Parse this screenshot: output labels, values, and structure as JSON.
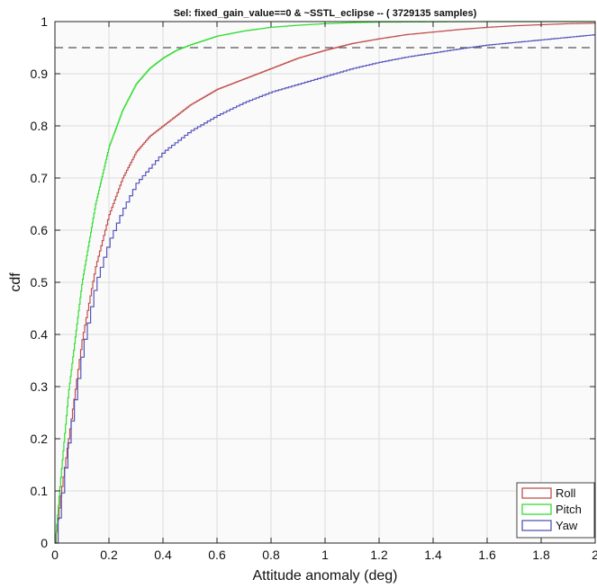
{
  "chart_data": {
    "type": "line",
    "title": "Sel: fixed_gain_value==0 & ~SSTL_eclipse -- ( 3729135 samples)",
    "xlabel": "Attitude anomaly (deg)",
    "ylabel": "cdf",
    "xlim": [
      0,
      2
    ],
    "ylim": [
      0,
      1
    ],
    "xticks": [
      0,
      0.2,
      0.4,
      0.6,
      0.8,
      1,
      1.2,
      1.4,
      1.6,
      1.8,
      2
    ],
    "yticks": [
      0,
      0.1,
      0.2,
      0.3,
      0.4,
      0.5,
      0.6,
      0.7,
      0.8,
      0.9,
      1
    ],
    "grid": true,
    "legend_position": "bottom-right",
    "reference_line": {
      "y": 0.95,
      "style": "dashed",
      "color": "#555555"
    },
    "series": [
      {
        "name": "Roll",
        "color": "#c0504d",
        "step": 0.005,
        "x": [
          0,
          0.02,
          0.05,
          0.1,
          0.15,
          0.2,
          0.25,
          0.3,
          0.35,
          0.4,
          0.5,
          0.6,
          0.7,
          0.8,
          0.9,
          1.0,
          1.1,
          1.2,
          1.3,
          1.4,
          1.5,
          1.6,
          1.7,
          1.8,
          1.9,
          2.0
        ],
        "y": [
          0,
          0.09,
          0.2,
          0.39,
          0.53,
          0.63,
          0.7,
          0.75,
          0.78,
          0.8,
          0.84,
          0.87,
          0.89,
          0.91,
          0.93,
          0.945,
          0.958,
          0.967,
          0.975,
          0.98,
          0.985,
          0.989,
          0.992,
          0.994,
          0.996,
          0.997
        ]
      },
      {
        "name": "Pitch",
        "color": "#33dd33",
        "step": 0.003,
        "x": [
          0,
          0.02,
          0.05,
          0.1,
          0.15,
          0.2,
          0.25,
          0.3,
          0.35,
          0.4,
          0.45,
          0.5,
          0.6,
          0.7,
          0.8,
          0.9,
          1.0,
          1.1,
          1.2,
          1.4,
          1.6,
          2.0
        ],
        "y": [
          0,
          0.12,
          0.29,
          0.5,
          0.65,
          0.76,
          0.83,
          0.88,
          0.91,
          0.93,
          0.945,
          0.955,
          0.972,
          0.982,
          0.989,
          0.993,
          0.996,
          0.998,
          0.999,
          0.9995,
          1.0,
          1.0
        ]
      },
      {
        "name": "Yaw",
        "color": "#5555bb",
        "step": 0.012,
        "x": [
          0,
          0.02,
          0.05,
          0.1,
          0.15,
          0.2,
          0.25,
          0.3,
          0.35,
          0.4,
          0.5,
          0.6,
          0.7,
          0.8,
          0.9,
          1.0,
          1.1,
          1.2,
          1.3,
          1.4,
          1.5,
          1.6,
          1.7,
          1.8,
          1.9,
          2.0
        ],
        "y": [
          0,
          0.08,
          0.2,
          0.37,
          0.5,
          0.58,
          0.64,
          0.69,
          0.72,
          0.75,
          0.79,
          0.82,
          0.845,
          0.865,
          0.88,
          0.895,
          0.91,
          0.922,
          0.932,
          0.94,
          0.948,
          0.955,
          0.96,
          0.965,
          0.97,
          0.975
        ]
      }
    ]
  }
}
